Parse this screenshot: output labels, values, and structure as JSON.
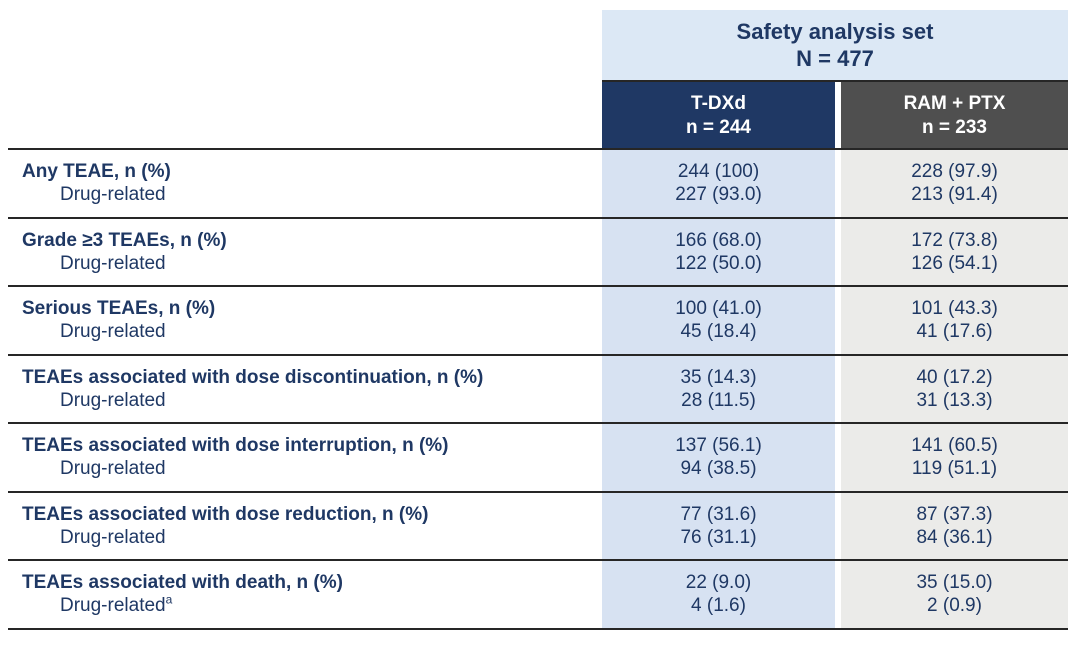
{
  "header": {
    "group_title_line1": "Safety analysis set",
    "group_title_line2": "N = 477",
    "columns": [
      {
        "name": "T-DXd",
        "n_label": "n = 244"
      },
      {
        "name": "RAM + PTX",
        "n_label": "n = 233"
      }
    ]
  },
  "table": {
    "rows": [
      {
        "label": "Any TEAE, n (%)",
        "sub_label": "Drug-related",
        "tdxd": "244 (100)",
        "tdxd_sub": "227 (93.0)",
        "ram": "228 (97.9)",
        "ram_sub": "213 (91.4)"
      },
      {
        "label": "Grade ≥3 TEAEs, n (%)",
        "sub_label": "Drug-related",
        "tdxd": "166 (68.0)",
        "tdxd_sub": "122 (50.0)",
        "ram": "172 (73.8)",
        "ram_sub": "126 (54.1)"
      },
      {
        "label": "Serious TEAEs, n (%)",
        "sub_label": "Drug-related",
        "tdxd": "100 (41.0)",
        "tdxd_sub": "45 (18.4)",
        "ram": "101 (43.3)",
        "ram_sub": "41 (17.6)"
      },
      {
        "label": "TEAEs associated with dose discontinuation, n (%)",
        "sub_label": "Drug-related",
        "tdxd": "35 (14.3)",
        "tdxd_sub": "28 (11.5)",
        "ram": "40 (17.2)",
        "ram_sub": "31 (13.3)"
      },
      {
        "label": "TEAEs associated with dose interruption, n (%)",
        "sub_label": "Drug-related",
        "tdxd": "137 (56.1)",
        "tdxd_sub": "94 (38.5)",
        "ram": "141 (60.5)",
        "ram_sub": "119 (51.1)"
      },
      {
        "label": "TEAEs associated with dose reduction, n (%)",
        "sub_label": "Drug-related",
        "tdxd": "77 (31.6)",
        "tdxd_sub": "76 (31.1)",
        "ram": "87 (37.3)",
        "ram_sub": "84 (36.1)"
      },
      {
        "label": "TEAEs associated with death, n (%)",
        "sub_label": "Drug-related",
        "sub_sup": "a",
        "tdxd": "22 (9.0)",
        "tdxd_sub": "4 (1.6)",
        "ram": "35 (15.0)",
        "ram_sub": "2 (0.9)"
      }
    ]
  },
  "colors": {
    "group_header_bg": "#dce8f5",
    "tdxd_header_bg": "#1f3864",
    "ram_header_bg": "#4f4f4f",
    "tdxd_col_bg": "#d7e2f2",
    "ram_col_bg": "#ebebe9",
    "text_navy": "#1f3864",
    "rule_line": "#262626"
  }
}
